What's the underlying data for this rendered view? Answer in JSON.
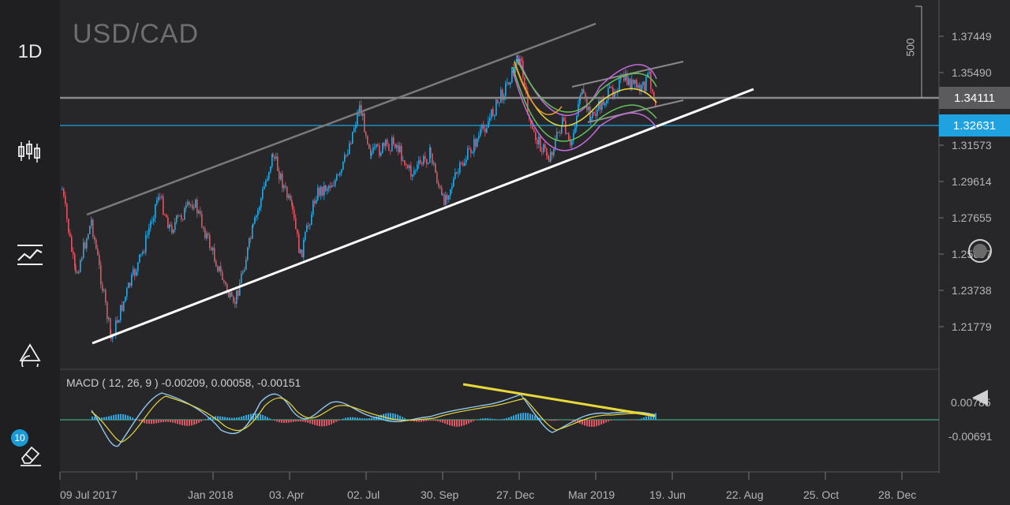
{
  "symbol": "USD/CAD",
  "timeframe": "1D",
  "badge_count": "10",
  "price_axis": [
    "1.37449",
    "1.35490",
    "1.31573",
    "1.29614",
    "1.27655",
    "1.25697",
    "1.23738",
    "1.21779"
  ],
  "time_axis": [
    "09 Jul 2017",
    "Jan 2018",
    "03. Apr",
    "02. Jul",
    "30. Sep",
    "27. Dec",
    "Mar 2019",
    "19. Jun",
    "22. Aug",
    "25. Oct",
    "28. Dec"
  ],
  "price_tags": {
    "grey": "1.34111",
    "blue": "1.32631"
  },
  "range_label": "500",
  "macd": {
    "label": "MACD ( 12, 26, 9 ) -0.00209, 0.00058, -0.00151",
    "axis": [
      "0.00785",
      "-0.00691"
    ]
  },
  "colors": {
    "up": "#2ea7e0",
    "down": "#e05563",
    "trend": "#ffffff",
    "channel": "#7a7a7a",
    "signal": "#e8d83a",
    "hline_grey": "#8a8a8a",
    "hline_blue": "#1ea3e0"
  },
  "icons": [
    "candlestick-icon",
    "indicator-icon",
    "drawing-icon",
    "eraser-icon"
  ]
}
